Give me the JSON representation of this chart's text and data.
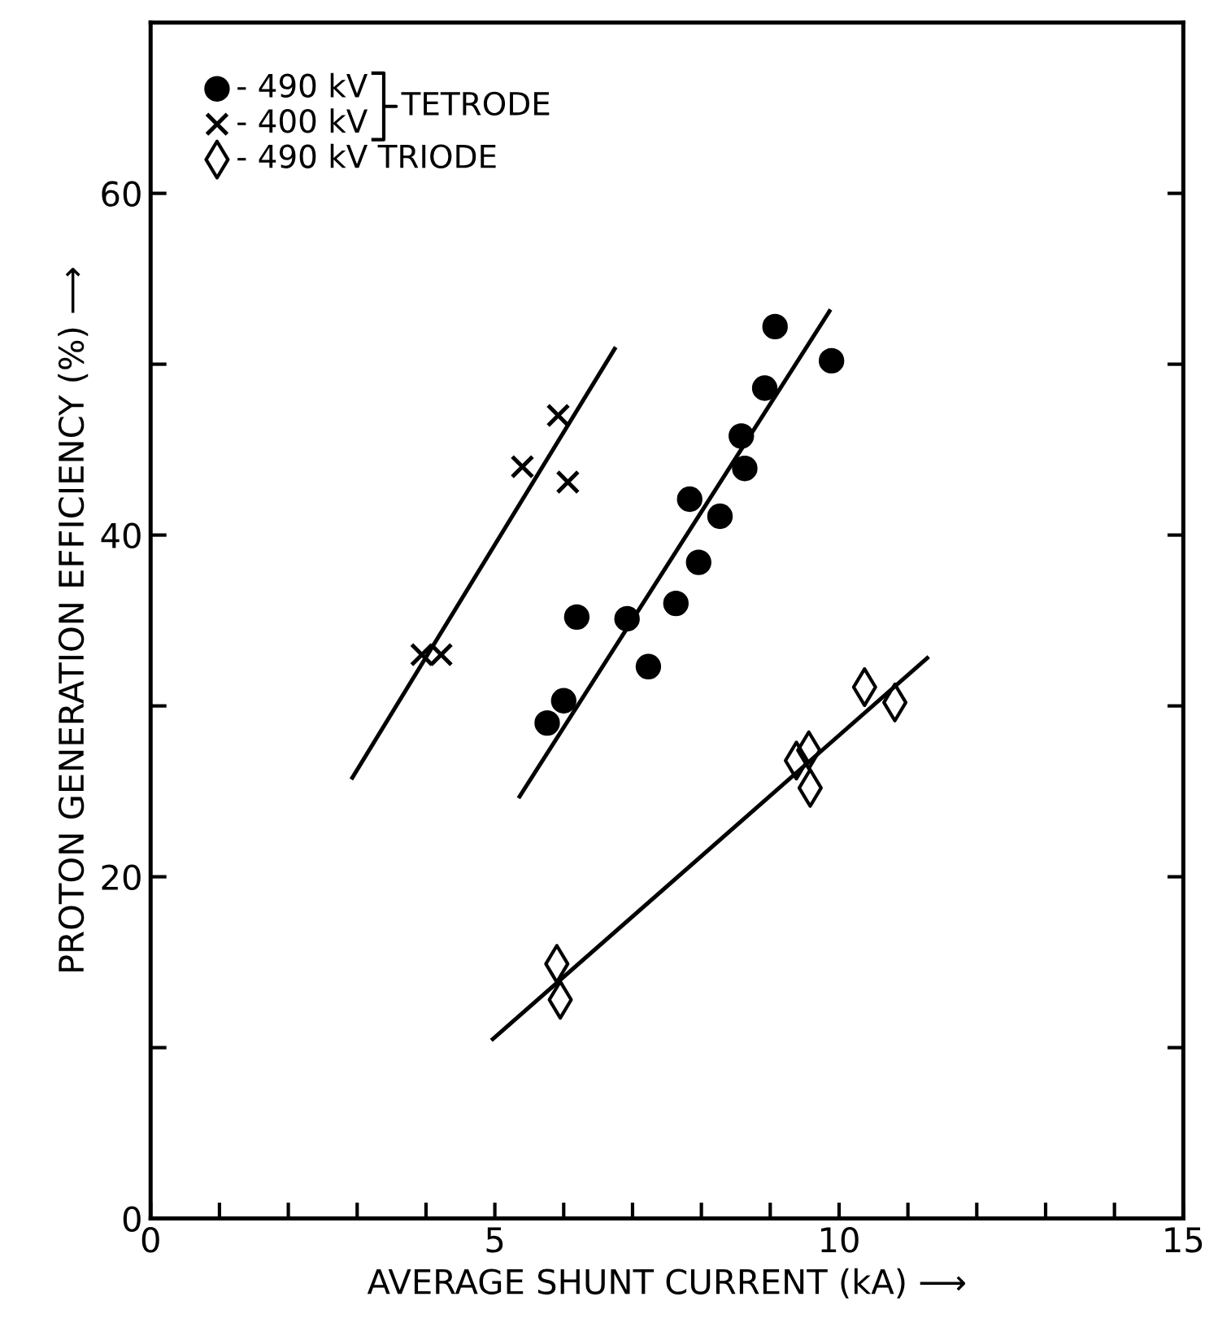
{
  "chart_data": {
    "type": "scatter",
    "xlabel": "AVERAGE SHUNT CURRENT (kA) ⟶",
    "ylabel": "PROTON GENERATION EFFICIENCY (%) ⟶",
    "xlim": [
      0,
      15
    ],
    "ylim": [
      0,
      70
    ],
    "xticks": [
      0,
      {
        "value": 1,
        "label": null
      },
      {
        "value": 2,
        "label": null
      },
      {
        "value": 3,
        "label": null
      },
      {
        "value": 4,
        "label": null
      },
      5,
      {
        "value": 6,
        "label": null
      },
      {
        "value": 7,
        "label": null
      },
      {
        "value": 8,
        "label": null
      },
      {
        "value": 9,
        "label": null
      },
      10,
      {
        "value": 11,
        "label": null
      },
      {
        "value": 12,
        "label": null
      },
      {
        "value": 13,
        "label": null
      },
      {
        "value": 14,
        "label": null
      },
      15
    ],
    "yticks": [
      0,
      {
        "value": 10,
        "label": null
      },
      20,
      {
        "value": 30,
        "label": null
      },
      40,
      {
        "value": 50,
        "label": null
      },
      60
    ],
    "grid": false,
    "legend": "top left",
    "annotations": [
      "TETRODE"
    ],
    "series": [
      {
        "name": "- 490 kV",
        "color": "#000000",
        "marker": "circle",
        "x": [
          9.07,
          9.89,
          8.92,
          8.58,
          8.63,
          7.83,
          8.27,
          7.96,
          7.63,
          6.92,
          6.19,
          7.23,
          6.0,
          5.76
        ],
        "values": [
          52.2,
          50.2,
          48.6,
          45.8,
          43.9,
          42.1,
          41.1,
          38.4,
          36.0,
          35.1,
          35.2,
          32.3,
          30.3,
          29.0
        ]
      },
      {
        "name": "- 400 kV",
        "color": "#000000",
        "marker": "cross",
        "x": [
          3.94,
          4.22,
          5.4,
          5.92,
          6.06
        ],
        "values": [
          33.0,
          33.0,
          44.0,
          47.0,
          43.1
        ]
      },
      {
        "name": "- 490 kV TRIODE",
        "color": "#000000",
        "marker": "diamond",
        "x": [
          5.9,
          5.95,
          9.38,
          9.56,
          9.58,
          10.37,
          10.81
        ],
        "values": [
          14.9,
          12.8,
          26.8,
          27.4,
          25.2,
          31.1,
          30.2
        ]
      },
      {
        "type": "line",
        "color": "#000000",
        "x": [
          2.93,
          6.74
        ],
        "values": [
          25.8,
          50.9
        ]
      },
      {
        "type": "line",
        "color": "#000000",
        "x": [
          5.36,
          9.86
        ],
        "values": [
          24.7,
          53.1
        ]
      },
      {
        "type": "line",
        "color": "#000000",
        "x": [
          4.97,
          11.28
        ],
        "values": [
          10.5,
          32.8
        ]
      }
    ]
  }
}
